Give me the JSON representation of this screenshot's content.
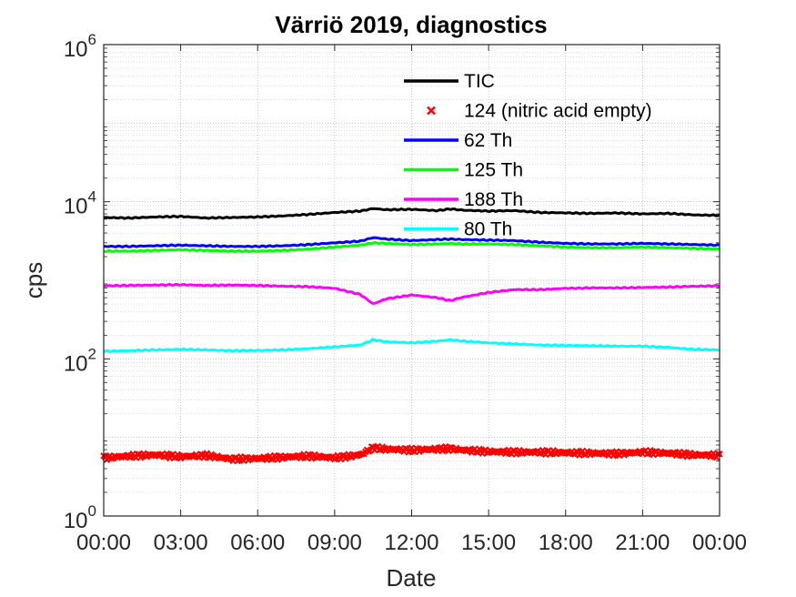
{
  "chart_data": {
    "type": "line",
    "title": "Värriö 2019, diagnostics",
    "xlabel": "Date",
    "ylabel": "cps",
    "yscale": "log",
    "ylim": [
      1,
      1000000
    ],
    "xlim": [
      "00:00",
      "24:00"
    ],
    "y_ticks": [
      {
        "base": "10",
        "exp": "0",
        "value": 1
      },
      {
        "base": "10",
        "exp": "2",
        "value": 100
      },
      {
        "base": "10",
        "exp": "4",
        "value": 10000
      },
      {
        "base": "10",
        "exp": "6",
        "value": 1000000
      }
    ],
    "x_ticks": [
      "00:00",
      "03:00",
      "06:00",
      "09:00",
      "12:00",
      "15:00",
      "18:00",
      "21:00",
      "00:00"
    ],
    "grid": true,
    "legend_position": "top-center",
    "x": [
      0,
      1,
      2,
      3,
      4,
      5,
      6,
      7,
      8,
      9,
      10,
      10.5,
      11,
      12,
      13,
      13.5,
      14,
      15,
      16,
      17,
      18,
      19,
      20,
      21,
      22,
      23,
      24
    ],
    "series": [
      {
        "name": "TIC",
        "color": "#000000",
        "style": "line",
        "values": [
          6300,
          6200,
          6400,
          6500,
          6200,
          6300,
          6400,
          6600,
          6900,
          7300,
          7600,
          8200,
          7900,
          8000,
          7700,
          8100,
          7800,
          7600,
          7700,
          7300,
          7200,
          7100,
          7200,
          7000,
          7100,
          6800,
          6700
        ]
      },
      {
        "name": "124 (nitric acid empty)",
        "color": "#ff0000",
        "style": "marker",
        "values": [
          5.5,
          5.8,
          6.0,
          5.7,
          5.9,
          5.3,
          5.4,
          5.6,
          5.8,
          5.5,
          6.0,
          7.4,
          7.1,
          6.9,
          7.1,
          7.2,
          6.9,
          6.6,
          6.5,
          6.5,
          6.4,
          6.3,
          6.2,
          6.5,
          6.3,
          6.0,
          5.9
        ]
      },
      {
        "name": "62 Th",
        "color": "#0000ff",
        "style": "line",
        "values": [
          2700,
          2700,
          2750,
          2800,
          2750,
          2700,
          2700,
          2750,
          2850,
          3000,
          3150,
          3500,
          3350,
          3200,
          3300,
          3350,
          3300,
          3250,
          3200,
          3050,
          2950,
          2900,
          2900,
          2950,
          2900,
          2850,
          2800
        ]
      },
      {
        "name": "125 Th",
        "color": "#00ff00",
        "style": "line",
        "values": [
          2350,
          2350,
          2400,
          2450,
          2400,
          2350,
          2350,
          2400,
          2500,
          2650,
          2800,
          3000,
          2950,
          2850,
          2900,
          2950,
          2900,
          2900,
          2850,
          2750,
          2650,
          2600,
          2600,
          2650,
          2600,
          2550,
          2500
        ]
      },
      {
        "name": "188 Th",
        "color": "#ff00ff",
        "style": "line",
        "values": [
          850,
          860,
          870,
          880,
          860,
          870,
          860,
          840,
          830,
          790,
          660,
          500,
          580,
          650,
          600,
          550,
          610,
          700,
          760,
          760,
          790,
          800,
          800,
          810,
          820,
          840,
          850
        ]
      },
      {
        "name": "80 Th",
        "color": "#00ffff",
        "style": "line",
        "values": [
          125,
          127,
          130,
          132,
          130,
          127,
          128,
          130,
          135,
          142,
          150,
          175,
          165,
          160,
          168,
          175,
          168,
          160,
          155,
          150,
          148,
          147,
          145,
          145,
          140,
          132,
          130
        ]
      }
    ]
  }
}
